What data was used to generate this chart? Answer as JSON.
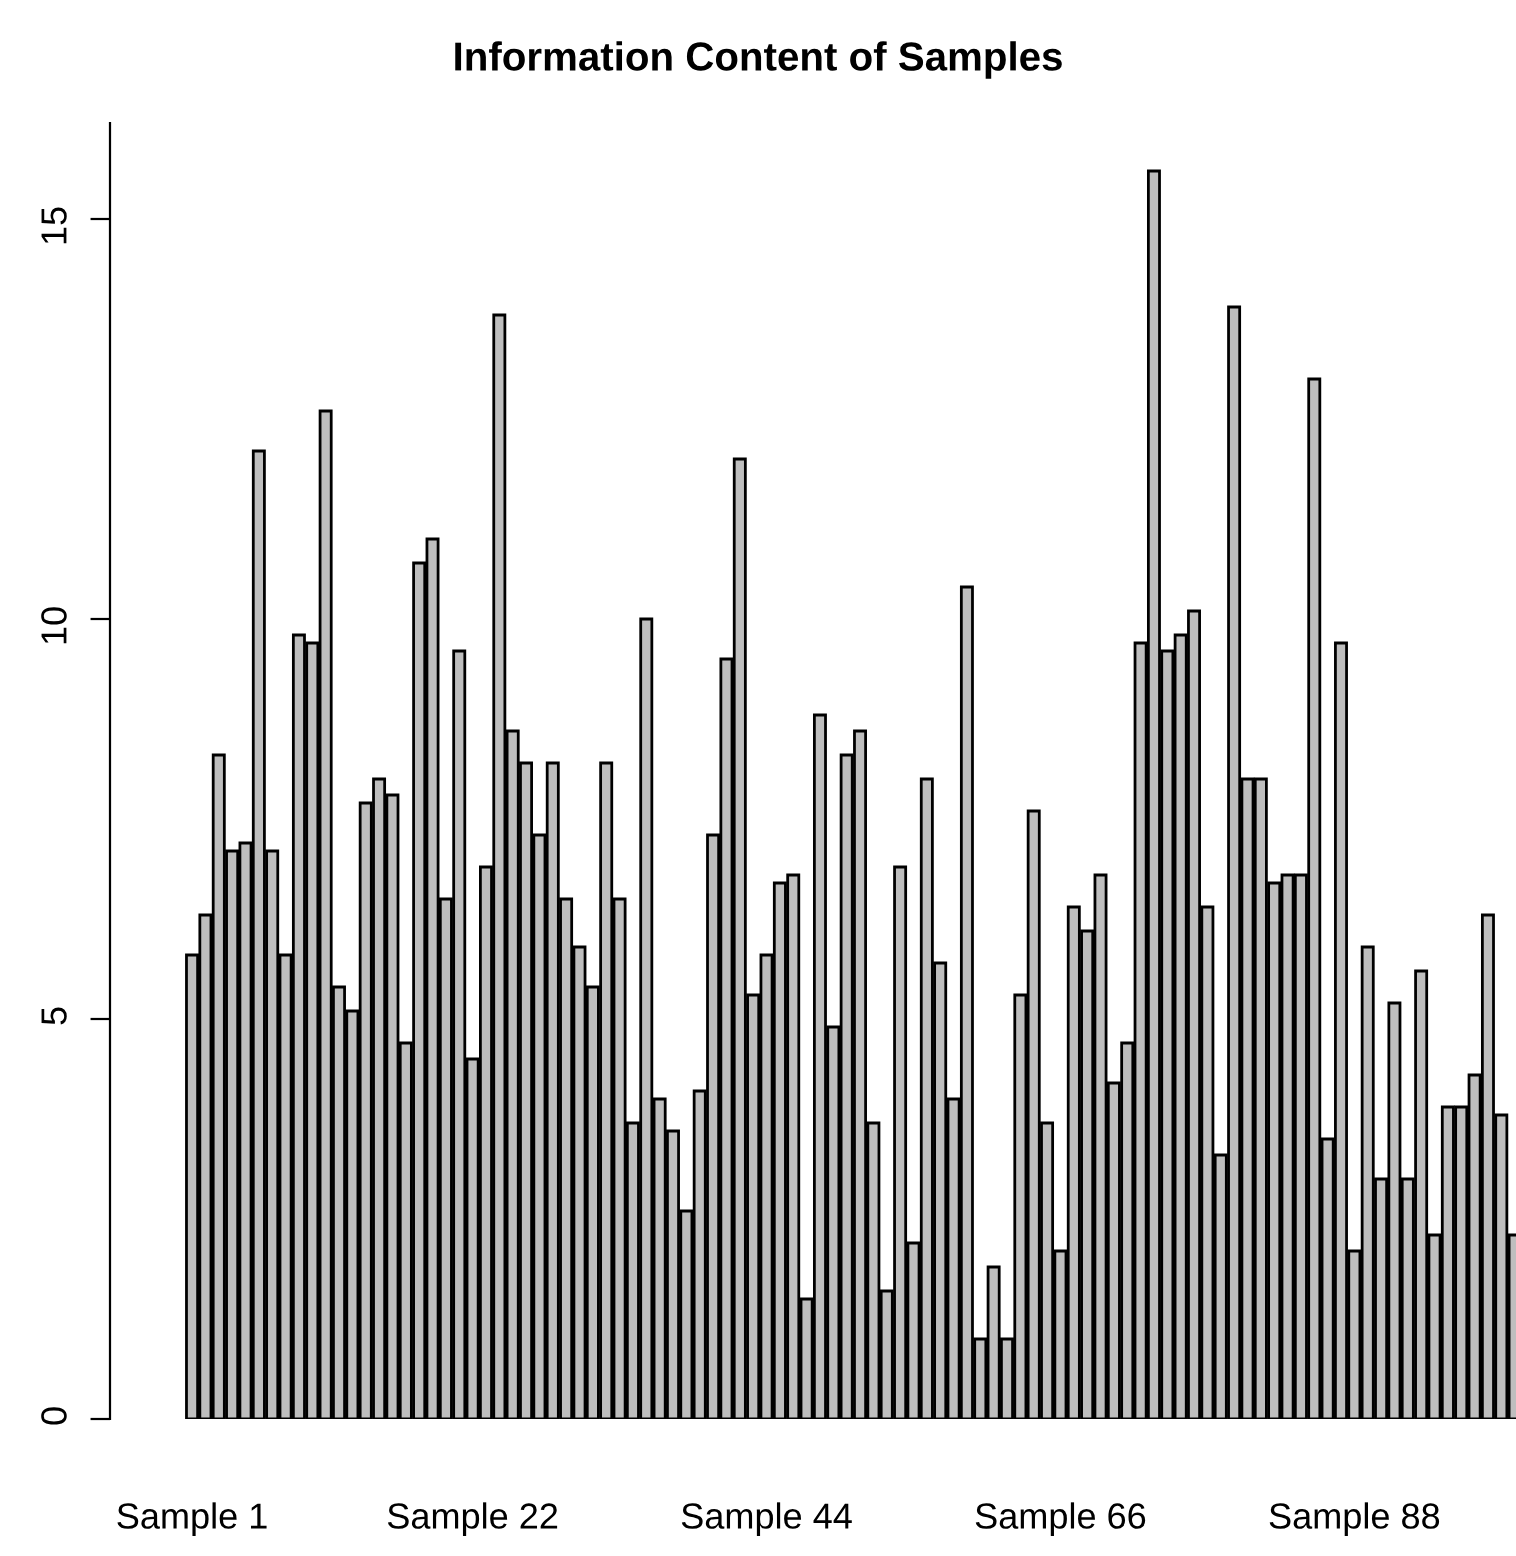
{
  "chart_data": {
    "type": "bar",
    "title": "Information Content of Samples",
    "categories": [
      "Sample 1",
      null,
      null,
      null,
      null,
      null,
      null,
      null,
      null,
      null,
      null,
      null,
      null,
      null,
      null,
      null,
      null,
      null,
      null,
      null,
      null,
      "Sample 22",
      null,
      null,
      null,
      null,
      null,
      null,
      null,
      null,
      null,
      null,
      null,
      null,
      null,
      null,
      null,
      null,
      null,
      null,
      null,
      null,
      null,
      "Sample 44",
      null,
      null,
      null,
      null,
      null,
      null,
      null,
      null,
      null,
      null,
      null,
      null,
      null,
      null,
      null,
      null,
      null,
      null,
      null,
      null,
      null,
      "Sample 66",
      null,
      null,
      null,
      null,
      null,
      null,
      null,
      null,
      null,
      null,
      null,
      null,
      null,
      null,
      null,
      null,
      null,
      null,
      null,
      null,
      null,
      "Sample 88",
      null,
      null,
      null,
      null,
      null,
      null,
      null,
      null,
      null,
      null,
      null,
      null
    ],
    "values": [
      5.8,
      6.3,
      8.3,
      7.1,
      7.2,
      12.1,
      7.1,
      5.8,
      9.8,
      9.7,
      12.6,
      5.4,
      5.1,
      7.7,
      8.0,
      7.8,
      4.7,
      10.7,
      11.0,
      6.5,
      9.6,
      4.5,
      6.9,
      13.8,
      8.6,
      8.2,
      7.3,
      8.2,
      6.5,
      5.9,
      5.4,
      8.2,
      6.5,
      3.7,
      10.0,
      4.0,
      3.6,
      2.6,
      4.1,
      7.3,
      9.5,
      12.0,
      5.3,
      5.8,
      6.7,
      6.8,
      1.5,
      8.8,
      4.9,
      8.3,
      8.6,
      3.7,
      1.6,
      6.9,
      2.2,
      8.0,
      5.7,
      4.0,
      10.4,
      1.0,
      1.9,
      1.0,
      5.3,
      7.6,
      3.7,
      2.1,
      6.4,
      6.1,
      6.8,
      4.2,
      4.7,
      9.7,
      15.6,
      9.6,
      9.8,
      10.1,
      6.4,
      3.3,
      13.9,
      8.0,
      8.0,
      6.7,
      6.8,
      6.8,
      13.0,
      3.5,
      9.7,
      2.1,
      5.9,
      3.0,
      5.2,
      3.0,
      5.6,
      2.3,
      3.9,
      3.9,
      4.3,
      6.3,
      3.8,
      2.3
    ],
    "color": "#bebebe",
    "ylim": [
      0,
      16.2
    ],
    "yticks": [
      0,
      5,
      10,
      15
    ],
    "grid": false
  }
}
